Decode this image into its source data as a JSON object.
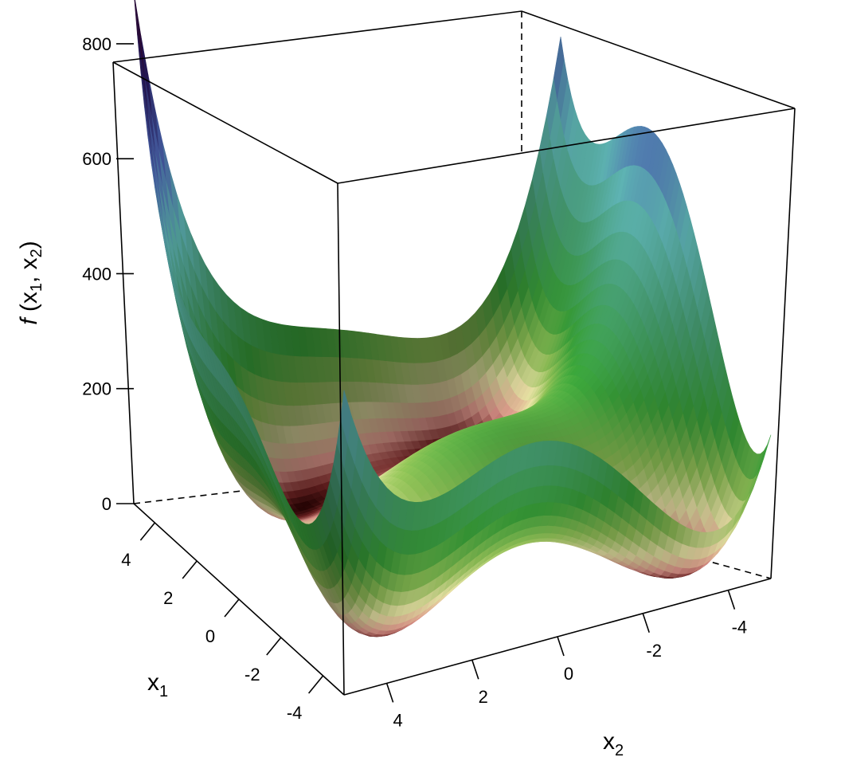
{
  "chart_data": {
    "type": "surface",
    "function": "Himmelblau",
    "zlabel": {
      "italic": "f",
      "open": " (x",
      "s1": "1",
      "mid": ", x",
      "s2": "2",
      "close": ")"
    },
    "x1label": {
      "base": "x",
      "sub": "1"
    },
    "x2label": {
      "base": "x",
      "sub": "2"
    },
    "x1_range": [
      -5,
      5
    ],
    "x2_range": [
      -5,
      5
    ],
    "z_range": [
      0,
      890
    ],
    "x1_ticks": [
      -4,
      -2,
      0,
      2,
      4
    ],
    "x2_ticks": [
      -4,
      -2,
      0,
      2,
      4
    ],
    "z_ticks": [
      0,
      200,
      400,
      600,
      800
    ],
    "x1_tick_labels": [
      "-4",
      "-2",
      "0",
      "2",
      "4"
    ],
    "x2_tick_labels": [
      "-4",
      "-2",
      "0",
      "2",
      "4"
    ],
    "z_tick_labels": [
      "0",
      "200",
      "400",
      "600",
      "800"
    ],
    "grid_points": 60
  }
}
